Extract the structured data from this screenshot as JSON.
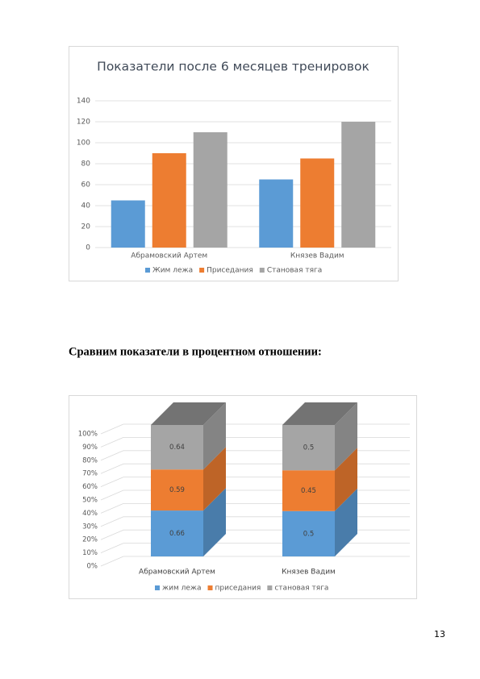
{
  "chart_data": [
    {
      "type": "bar",
      "title": "Показатели после 6 месяцев тренировок",
      "categories": [
        "Абрамовский Артем",
        "Князев Вадим"
      ],
      "series": [
        {
          "name": "Жим лежа",
          "color": "#5b9bd5",
          "values": [
            45,
            65
          ]
        },
        {
          "name": "Приседания",
          "color": "#ed7d31",
          "values": [
            90,
            85
          ]
        },
        {
          "name": "Становая тяга",
          "color": "#a5a5a5",
          "values": [
            110,
            120
          ]
        }
      ],
      "ylim": [
        0,
        140
      ],
      "yticks": [
        0,
        20,
        40,
        60,
        80,
        100,
        120,
        140
      ],
      "grid": true,
      "legend": "bottom"
    },
    {
      "type": "stacked100",
      "categories": [
        "Абрамовский Артем",
        "Князев Вадим"
      ],
      "series": [
        {
          "name": "жим лежа",
          "color": "#5b9bd5",
          "values": [
            0.66,
            0.5
          ]
        },
        {
          "name": "приседания",
          "color": "#ed7d31",
          "values": [
            0.59,
            0.45
          ]
        },
        {
          "name": "становая тяга",
          "color": "#a5a5a5",
          "values": [
            0.64,
            0.5
          ]
        }
      ],
      "ylim": [
        0,
        100
      ],
      "yticks": [
        {
          "value": 0,
          "label": "0%"
        },
        {
          "value": 10,
          "label": "10%"
        },
        {
          "value": 20,
          "label": "20%"
        },
        {
          "value": 30,
          "label": "30%"
        },
        {
          "value": 40,
          "label": "40%"
        },
        {
          "value": 50,
          "label": "50%"
        },
        {
          "value": 60,
          "label": "60%"
        },
        {
          "value": 70,
          "label": "70%"
        },
        {
          "value": 80,
          "label": "80%"
        },
        {
          "value": 90,
          "label": "90%"
        },
        {
          "value": 100,
          "label": "100%"
        }
      ],
      "grid": true,
      "legend": "bottom"
    }
  ],
  "heading": "Сравним показатели в процентном отношении:",
  "page_number": 13
}
